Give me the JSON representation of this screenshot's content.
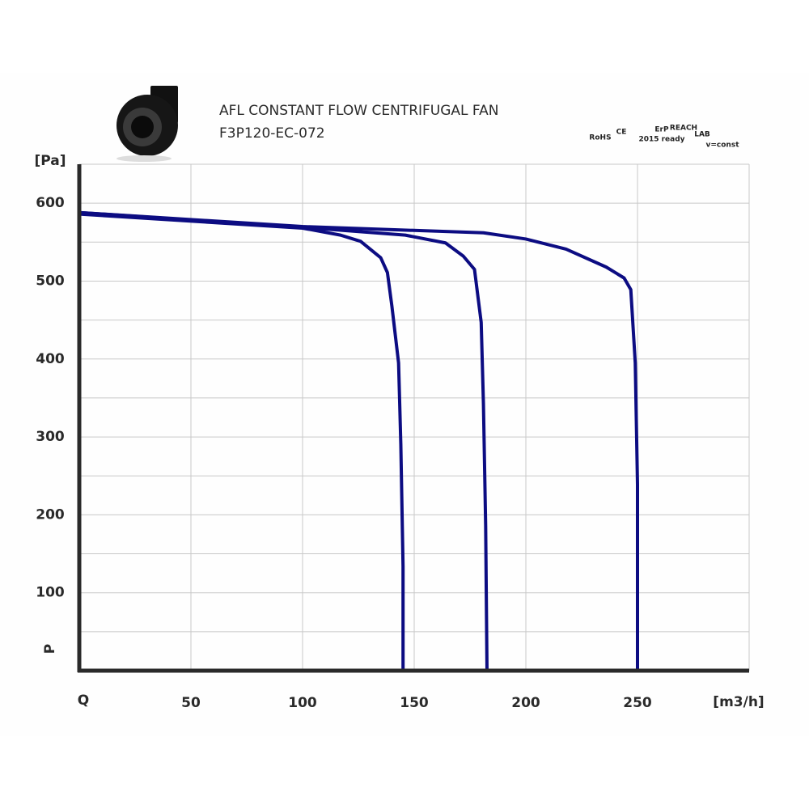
{
  "chart_data": {
    "type": "line",
    "title": "AFL CONSTANT FLOW CENTRIFUGAL FAN",
    "subtitle": "F3P120-EC-072",
    "badges": [
      "RoHS",
      "CE",
      "ErP",
      "2015 ready",
      "REACH",
      "LAB",
      "v=const"
    ],
    "y_label": "[Pa]",
    "y_symbol": "P",
    "x_label": "[m3/h]",
    "x_symbol": "Q",
    "xlim": [
      0,
      300
    ],
    "xticks": [
      50,
      100,
      150,
      200,
      250
    ],
    "x_grid": [
      50,
      100,
      150,
      200,
      250,
      300
    ],
    "ylim": [
      0,
      650
    ],
    "yticks": [
      100,
      200,
      300,
      400,
      500,
      600
    ],
    "y_grid": [
      50,
      100,
      150,
      200,
      250,
      300,
      350,
      400,
      450,
      500,
      550,
      600,
      650
    ],
    "grid": true,
    "series": [
      {
        "color": "#0c0c82",
        "x": [
          0,
          100,
          117,
          126,
          135,
          138,
          140,
          143,
          144,
          145,
          145
        ],
        "values": [
          586,
          568,
          559,
          551,
          530,
          511,
          468,
          395,
          291,
          134,
          0
        ]
      },
      {
        "color": "#0c0c82",
        "x": [
          0,
          100,
          146,
          164,
          172,
          177,
          180,
          181,
          182,
          182.6
        ],
        "values": [
          588,
          569,
          559,
          549,
          532,
          515,
          447,
          343,
          186,
          0
        ]
      },
      {
        "color": "#0c0c82",
        "x": [
          0,
          100,
          181,
          200,
          218,
          236,
          244,
          247,
          249,
          250,
          250
        ],
        "values": [
          588,
          570,
          562,
          554,
          541,
          518,
          504,
          489,
          395,
          239,
          0
        ]
      }
    ]
  }
}
